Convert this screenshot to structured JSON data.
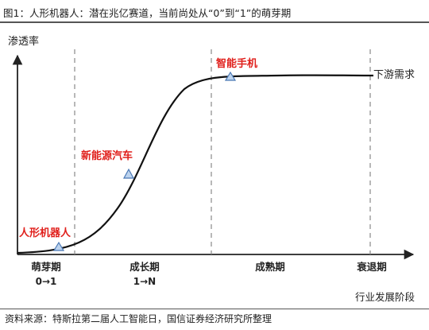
{
  "figure": {
    "title": "图1：人形机器人：潜在兆亿赛道，当前尚处从“0”到“1”的萌芽期",
    "source": "资料来源：特斯拉第二届人工智能日，国信证券经济研究所整理"
  },
  "axes": {
    "y_label": "渗透率",
    "x_label": "行业发展阶段"
  },
  "stages": [
    {
      "label": "萌芽期",
      "sub": "0→1"
    },
    {
      "label": "成长期",
      "sub": "1→N"
    },
    {
      "label": "成熟期",
      "sub": ""
    },
    {
      "label": "衰退期",
      "sub": ""
    }
  ],
  "points": [
    {
      "label": "人形机器人"
    },
    {
      "label": "新能源汽车"
    },
    {
      "label": "智能手机"
    }
  ],
  "curve_end_label": "下游需求",
  "colors": {
    "axis": "#222222",
    "curve": "#111111",
    "divider": "#888888",
    "highlight": "#e0201c",
    "marker_fill": "#bcd3ee",
    "marker_stroke": "#4a78b5"
  }
}
